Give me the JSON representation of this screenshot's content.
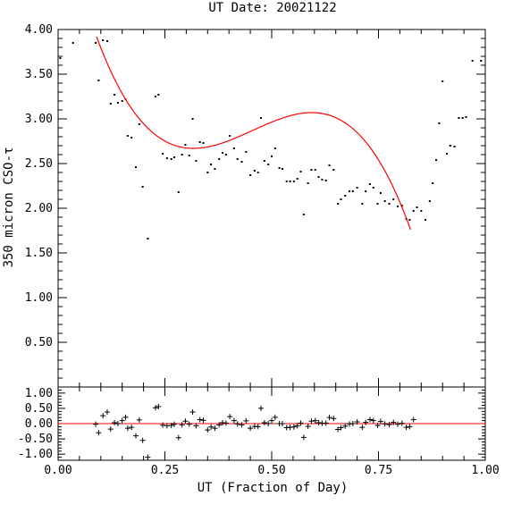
{
  "chart_data": [
    {
      "type": "scatter",
      "title": "UT Date: 20021122",
      "xlabel": "UT (Fraction of Day)",
      "ylabel": "350 micron CSO-τ",
      "xlim": [
        0,
        1
      ],
      "ylim": [
        0,
        4
      ],
      "x_ticks": [
        "0.00",
        "0.25",
        "0.50",
        "0.75",
        "1.00"
      ],
      "y_ticks": [
        "0.50",
        "1.00",
        "1.50",
        "2.00",
        "2.50",
        "3.00",
        "3.50",
        "4.00"
      ],
      "point_color": "#000000",
      "fit_color": "#ff0000",
      "series": [
        {
          "marker": "dot",
          "points": [
            [
              0.005,
              3.68
            ],
            [
              0.035,
              3.85
            ],
            [
              0.088,
              3.85
            ],
            [
              0.095,
              3.43
            ],
            [
              0.105,
              3.88
            ],
            [
              0.115,
              3.87
            ],
            [
              0.123,
              3.17
            ],
            [
              0.132,
              3.27
            ],
            [
              0.14,
              3.18
            ],
            [
              0.15,
              3.2
            ],
            [
              0.158,
              3.22
            ],
            [
              0.163,
              2.81
            ],
            [
              0.172,
              2.79
            ],
            [
              0.182,
              2.46
            ],
            [
              0.19,
              2.94
            ],
            [
              0.198,
              2.24
            ],
            [
              0.21,
              1.66
            ],
            [
              0.228,
              3.25
            ],
            [
              0.235,
              3.27
            ],
            [
              0.245,
              2.61
            ],
            [
              0.255,
              2.56
            ],
            [
              0.265,
              2.55
            ],
            [
              0.272,
              2.57
            ],
            [
              0.282,
              2.18
            ],
            [
              0.29,
              2.6
            ],
            [
              0.298,
              2.71
            ],
            [
              0.307,
              2.59
            ],
            [
              0.315,
              3.0
            ],
            [
              0.323,
              2.53
            ],
            [
              0.332,
              2.74
            ],
            [
              0.34,
              2.73
            ],
            [
              0.35,
              2.4
            ],
            [
              0.358,
              2.49
            ],
            [
              0.367,
              2.44
            ],
            [
              0.377,
              2.55
            ],
            [
              0.385,
              2.62
            ],
            [
              0.393,
              2.6
            ],
            [
              0.402,
              2.81
            ],
            [
              0.412,
              2.67
            ],
            [
              0.42,
              2.55
            ],
            [
              0.43,
              2.52
            ],
            [
              0.44,
              2.63
            ],
            [
              0.45,
              2.37
            ],
            [
              0.46,
              2.42
            ],
            [
              0.468,
              2.4
            ],
            [
              0.475,
              3.01
            ],
            [
              0.483,
              2.53
            ],
            [
              0.492,
              2.49
            ],
            [
              0.5,
              2.58
            ],
            [
              0.508,
              2.67
            ],
            [
              0.518,
              2.45
            ],
            [
              0.525,
              2.44
            ],
            [
              0.535,
              2.3
            ],
            [
              0.543,
              2.3
            ],
            [
              0.552,
              2.3
            ],
            [
              0.56,
              2.33
            ],
            [
              0.568,
              2.41
            ],
            [
              0.575,
              1.93
            ],
            [
              0.585,
              2.28
            ],
            [
              0.593,
              2.43
            ],
            [
              0.602,
              2.43
            ],
            [
              0.61,
              2.35
            ],
            [
              0.618,
              2.32
            ],
            [
              0.627,
              2.31
            ],
            [
              0.635,
              2.48
            ],
            [
              0.645,
              2.43
            ],
            [
              0.655,
              2.05
            ],
            [
              0.662,
              2.1
            ],
            [
              0.672,
              2.14
            ],
            [
              0.682,
              2.19
            ],
            [
              0.69,
              2.19
            ],
            [
              0.7,
              2.23
            ],
            [
              0.712,
              2.05
            ],
            [
              0.72,
              2.19
            ],
            [
              0.73,
              2.27
            ],
            [
              0.738,
              2.23
            ],
            [
              0.748,
              2.05
            ],
            [
              0.755,
              2.17
            ],
            [
              0.765,
              2.08
            ],
            [
              0.775,
              2.05
            ],
            [
              0.785,
              2.1
            ],
            [
              0.795,
              2.02
            ],
            [
              0.805,
              2.03
            ],
            [
              0.815,
              1.88
            ],
            [
              0.823,
              1.87
            ],
            [
              0.832,
              1.97
            ],
            [
              0.84,
              2.01
            ],
            [
              0.85,
              1.97
            ],
            [
              0.86,
              1.87
            ],
            [
              0.87,
              2.08
            ],
            [
              0.877,
              2.28
            ],
            [
              0.885,
              2.54
            ],
            [
              0.892,
              2.95
            ],
            [
              0.9,
              3.42
            ],
            [
              0.91,
              2.61
            ],
            [
              0.918,
              2.7
            ],
            [
              0.928,
              2.69
            ],
            [
              0.938,
              3.01
            ],
            [
              0.947,
              3.01
            ],
            [
              0.955,
              3.02
            ],
            [
              0.97,
              3.65
            ],
            [
              0.99,
              3.65
            ]
          ]
        },
        {
          "marker": "curve",
          "polynomial_coeffs": [
            5.45,
            -21.34,
            51.64,
            -37.81
          ],
          "x_range": [
            0.09,
            0.825
          ]
        }
      ]
    },
    {
      "type": "scatter",
      "xlabel": "UT (Fraction of Day)",
      "xlim": [
        0,
        1
      ],
      "ylim": [
        -1.2,
        1.2
      ],
      "y_ticks": [
        "1.00",
        "0.50",
        "0.00",
        "-0.50",
        "-1.00"
      ],
      "baseline": 0,
      "series": [
        {
          "marker": "plus",
          "points": [
            [
              0.088,
              -0.02
            ],
            [
              0.095,
              -0.3
            ],
            [
              0.105,
              0.26
            ],
            [
              0.115,
              0.38
            ],
            [
              0.123,
              -0.18
            ],
            [
              0.132,
              0.03
            ],
            [
              0.14,
              0.0
            ],
            [
              0.15,
              0.1
            ],
            [
              0.158,
              0.21
            ],
            [
              0.163,
              -0.15
            ],
            [
              0.172,
              -0.12
            ],
            [
              0.182,
              -0.4
            ],
            [
              0.19,
              0.12
            ],
            [
              0.198,
              -0.55
            ],
            [
              0.21,
              -1.1
            ],
            [
              0.228,
              0.52
            ],
            [
              0.235,
              0.56
            ],
            [
              0.245,
              -0.05
            ],
            [
              0.255,
              -0.07
            ],
            [
              0.265,
              -0.06
            ],
            [
              0.272,
              -0.02
            ],
            [
              0.282,
              -0.46
            ],
            [
              0.29,
              -0.04
            ],
            [
              0.298,
              0.08
            ],
            [
              0.307,
              -0.02
            ],
            [
              0.315,
              0.38
            ],
            [
              0.323,
              -0.07
            ],
            [
              0.332,
              0.13
            ],
            [
              0.34,
              0.11
            ],
            [
              0.35,
              -0.21
            ],
            [
              0.358,
              -0.11
            ],
            [
              0.367,
              -0.15
            ],
            [
              0.377,
              -0.04
            ],
            [
              0.385,
              0.03
            ],
            [
              0.393,
              0.02
            ],
            [
              0.402,
              0.23
            ],
            [
              0.412,
              0.1
            ],
            [
              0.42,
              -0.01
            ],
            [
              0.43,
              -0.04
            ],
            [
              0.44,
              0.09
            ],
            [
              0.45,
              -0.15
            ],
            [
              0.46,
              -0.09
            ],
            [
              0.468,
              -0.1
            ],
            [
              0.475,
              0.5
            ],
            [
              0.483,
              0.03
            ],
            [
              0.492,
              0.0
            ],
            [
              0.5,
              0.1
            ],
            [
              0.508,
              0.21
            ],
            [
              0.518,
              0.0
            ],
            [
              0.525,
              0.0
            ],
            [
              0.535,
              -0.13
            ],
            [
              0.543,
              -0.12
            ],
            [
              0.552,
              -0.11
            ],
            [
              0.56,
              -0.07
            ],
            [
              0.568,
              0.02
            ],
            [
              0.575,
              -0.45
            ],
            [
              0.585,
              -0.09
            ],
            [
              0.593,
              0.08
            ],
            [
              0.602,
              0.1
            ],
            [
              0.61,
              0.03
            ],
            [
              0.618,
              0.01
            ],
            [
              0.627,
              0.02
            ],
            [
              0.635,
              0.2
            ],
            [
              0.645,
              0.17
            ],
            [
              0.655,
              -0.19
            ],
            [
              0.662,
              -0.13
            ],
            [
              0.672,
              -0.08
            ],
            [
              0.682,
              -0.01
            ],
            [
              0.69,
              0.0
            ],
            [
              0.7,
              0.06
            ],
            [
              0.712,
              -0.12
            ],
            [
              0.72,
              0.04
            ],
            [
              0.73,
              0.13
            ],
            [
              0.738,
              0.1
            ],
            [
              0.748,
              -0.06
            ],
            [
              0.755,
              0.07
            ],
            [
              0.765,
              -0.01
            ],
            [
              0.775,
              -0.03
            ],
            [
              0.785,
              0.04
            ],
            [
              0.795,
              -0.02
            ],
            [
              0.805,
              0.01
            ],
            [
              0.815,
              -0.12
            ],
            [
              0.823,
              -0.1
            ],
            [
              0.832,
              0.13
            ]
          ]
        }
      ]
    }
  ]
}
